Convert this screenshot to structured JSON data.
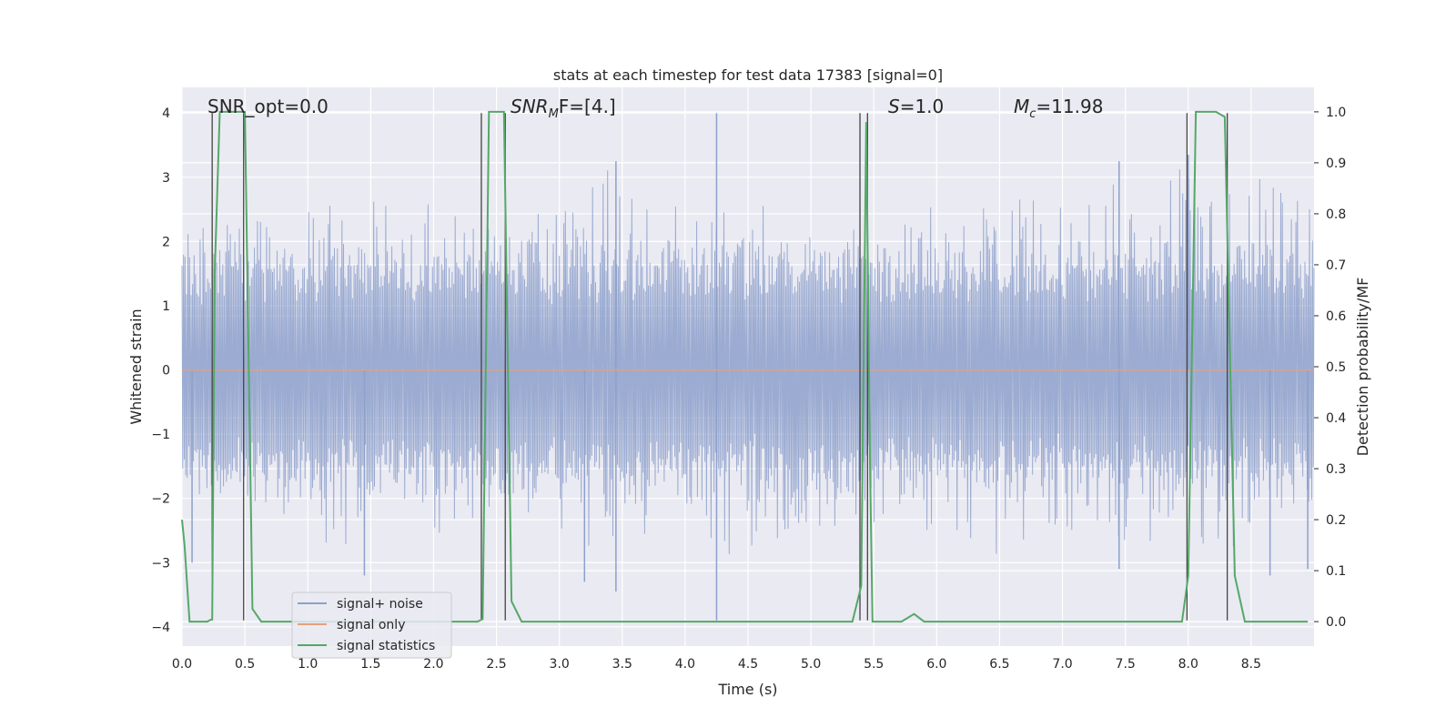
{
  "chart_data": {
    "type": "line",
    "title": "stats at each timestep for test data 17383 [signal=0]",
    "xlabel": "Time (s)",
    "ylabel": "Whitened strain",
    "y2label": "Detection probability/MF",
    "xlim": [
      0,
      9.0
    ],
    "ylim": [
      -4.3,
      4.4
    ],
    "y2lim": [
      -0.048,
      1.048
    ],
    "grid": true,
    "x_ticks": [
      "0.0",
      "0.5",
      "1.0",
      "1.5",
      "2.0",
      "2.5",
      "3.0",
      "3.5",
      "4.0",
      "4.5",
      "5.0",
      "5.5",
      "6.0",
      "6.5",
      "7.0",
      "7.5",
      "8.0",
      "8.5"
    ],
    "y_ticks": [
      "−4",
      "−3",
      "−2",
      "−1",
      "0",
      "1",
      "2",
      "3",
      "4"
    ],
    "y2_ticks": [
      "0.0",
      "0.1",
      "0.2",
      "0.3",
      "0.4",
      "0.5",
      "0.6",
      "0.7",
      "0.8",
      "0.9",
      "1.0"
    ],
    "annotations": [
      {
        "label": "SNR_opt=0.0"
      },
      {
        "label": "SNR",
        "sub": "M",
        "tail": "F=[4.]"
      },
      {
        "label": "S",
        "tail": "=1.0"
      },
      {
        "label": "M",
        "sub": "c",
        "tail": "=11.98"
      }
    ],
    "legend": {
      "position": "lower-left",
      "entries": [
        {
          "name": "signal+ noise",
          "color": "#8da0cb"
        },
        {
          "name": "signal only",
          "color": "#e5a07c"
        },
        {
          "name": "signal statistics",
          "color": "#55a868"
        }
      ]
    },
    "series": [
      {
        "name": "signal+ noise",
        "color": "#8da0cb",
        "envelope": {
          "x": [
            0.0,
            0.05,
            0.1,
            0.15,
            0.25,
            0.35,
            0.45,
            0.55,
            0.75,
            0.95,
            1.15,
            1.35,
            1.5,
            1.75,
            2.0,
            2.25,
            2.45,
            2.65,
            2.9,
            3.1,
            3.4,
            3.7,
            4.0,
            4.3,
            4.6,
            4.9,
            5.2,
            5.45,
            5.7,
            5.95,
            6.2,
            6.5,
            6.8,
            7.1,
            7.4,
            7.7,
            8.0,
            8.3,
            8.6,
            8.9,
            9.0
          ],
          "upper": [
            2.1,
            2.2,
            2.5,
            2.8,
            2.1,
            2.4,
            2.3,
            2.7,
            2.4,
            2.9,
            2.6,
            2.5,
            2.7,
            2.5,
            2.6,
            2.4,
            2.2,
            2.4,
            2.7,
            2.6,
            3.2,
            2.7,
            2.5,
            2.5,
            2.6,
            2.4,
            2.5,
            2.1,
            2.4,
            2.6,
            2.6,
            2.5,
            2.8,
            2.6,
            2.9,
            2.7,
            3.3,
            2.8,
            3.1,
            2.6,
            2.6
          ],
          "lower": [
            -1.9,
            -2.0,
            -1.8,
            -2.2,
            -2.3,
            -1.8,
            -2.0,
            -2.4,
            -2.7,
            -2.9,
            -2.8,
            -3.1,
            -2.4,
            -2.5,
            -2.6,
            -2.6,
            -2.4,
            -2.4,
            -2.4,
            -2.8,
            -3.1,
            -2.7,
            -2.2,
            -2.9,
            -2.8,
            -2.5,
            -2.6,
            -2.3,
            -2.7,
            -2.5,
            -2.9,
            -2.9,
            -2.6,
            -2.5,
            -2.6,
            -2.8,
            -2.9,
            -2.8,
            -2.6,
            -2.8,
            -2.8
          ]
        },
        "spikes": [
          {
            "x": 4.25,
            "y": 4.0
          },
          {
            "x": 4.25,
            "y": -3.9
          },
          {
            "x": 3.45,
            "y": 3.25
          },
          {
            "x": 3.45,
            "y": -3.45
          },
          {
            "x": 7.45,
            "y": 3.25
          },
          {
            "x": 7.45,
            "y": -3.1
          },
          {
            "x": 8.0,
            "y": 3.35
          },
          {
            "x": 3.2,
            "y": -3.3
          },
          {
            "x": 1.45,
            "y": -3.2
          },
          {
            "x": 0.08,
            "y": -3.0
          },
          {
            "x": 8.65,
            "y": -3.2
          },
          {
            "x": 8.95,
            "y": -3.1
          }
        ]
      },
      {
        "name": "signal only",
        "color": "#e5a07c",
        "x": [
          0.0,
          9.0
        ],
        "y": [
          0.0,
          0.0
        ]
      },
      {
        "name": "signal statistics",
        "color": "#55a868",
        "axis": "right",
        "x": [
          0.0,
          0.02,
          0.06,
          0.2,
          0.24,
          0.26,
          0.3,
          0.5,
          0.56,
          0.63,
          2.35,
          2.39,
          2.44,
          2.56,
          2.62,
          2.7,
          5.33,
          5.4,
          5.44,
          5.47,
          5.49,
          5.55,
          5.72,
          5.82,
          5.9,
          7.95,
          8.0,
          8.06,
          8.12,
          8.22,
          8.29,
          8.37,
          8.45,
          8.95
        ],
        "y": [
          0.2,
          0.15,
          0.0,
          0.0,
          0.005,
          0.68,
          1.0,
          1.0,
          0.025,
          0.0,
          0.0,
          0.005,
          1.0,
          1.0,
          0.04,
          0.0,
          0.0,
          0.07,
          0.98,
          0.3,
          0.0,
          0.0,
          0.0,
          0.015,
          0.0,
          0.0,
          0.09,
          1.0,
          1.0,
          1.0,
          0.99,
          0.09,
          0.0,
          0.0
        ]
      }
    ],
    "vlines": [
      0.24,
      0.49,
      2.38,
      2.57,
      5.39,
      5.45,
      7.99,
      8.31
    ]
  }
}
